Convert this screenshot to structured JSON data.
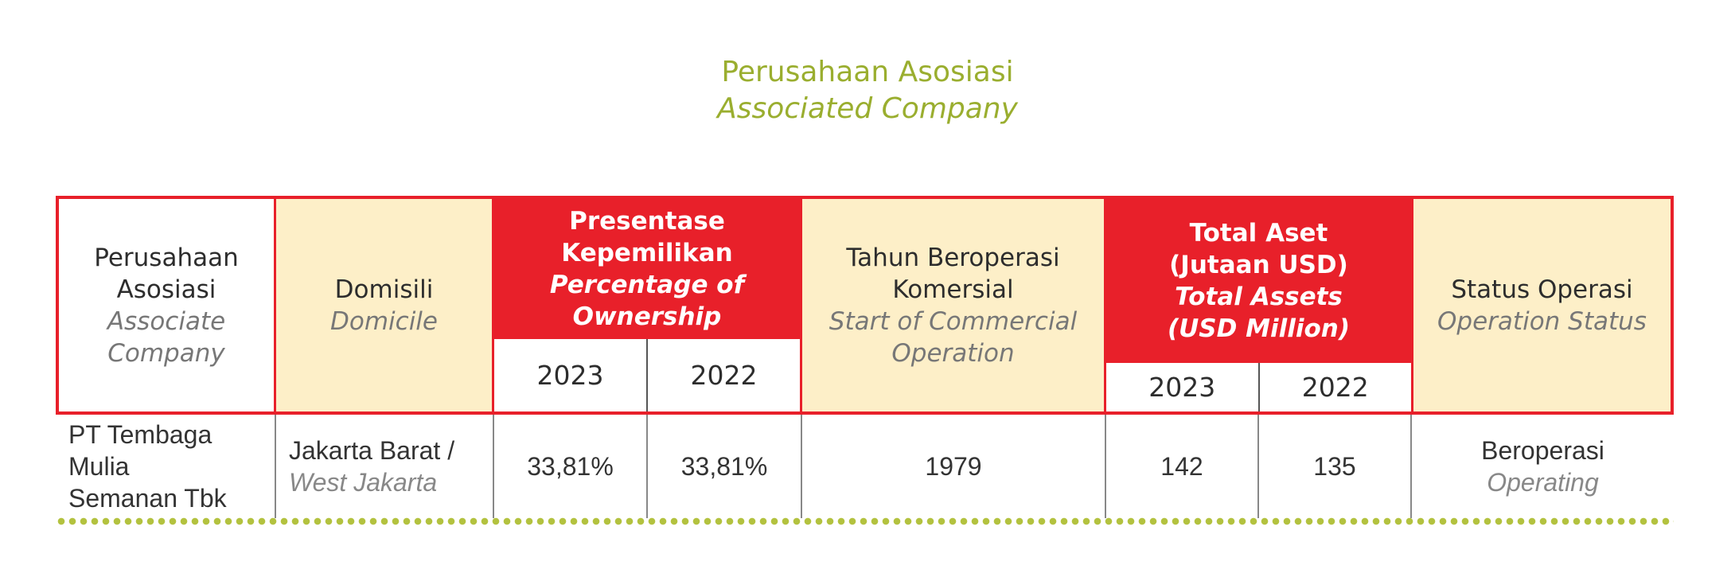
{
  "title": {
    "id": "Perusahaan Asosiasi",
    "en": "Associated Company"
  },
  "header": {
    "company": {
      "id": "Perusahaan Asosiasi",
      "en": "Associate Company"
    },
    "domicile": {
      "id": "Domisili",
      "en": "Domicile"
    },
    "ownership": {
      "id": "Presentase Kepemilikan",
      "en": "Percentage of Ownership",
      "year1": "2023",
      "year2": "2022"
    },
    "start": {
      "id": "Tahun Beroperasi Komersial",
      "en": "Start of Commercial Operation"
    },
    "assets": {
      "id_line1": "Total Aset",
      "id_line2": "(Jutaan USD)",
      "en_line1": "Total Assets",
      "en_line2": "(USD Million)",
      "year1": "2023",
      "year2": "2022"
    },
    "status": {
      "id": "Status Operasi",
      "en": "Operation Status"
    }
  },
  "rows": [
    {
      "company": "PT Tembaga Mulia Semanan Tbk",
      "domicile_id": "Jakarta Barat /",
      "domicile_en": "West Jakarta",
      "ownership_2023": "33,81%",
      "ownership_2022": "33,81%",
      "start_year": "1979",
      "assets_2023": "142",
      "assets_2022": "135",
      "status_id": "Beroperasi",
      "status_en": "Operating"
    }
  ],
  "colors": {
    "accent_red": "#e8202a",
    "cream": "#fdefc8",
    "title_green": "#9aae2f",
    "dots_green": "#b3c23f"
  }
}
